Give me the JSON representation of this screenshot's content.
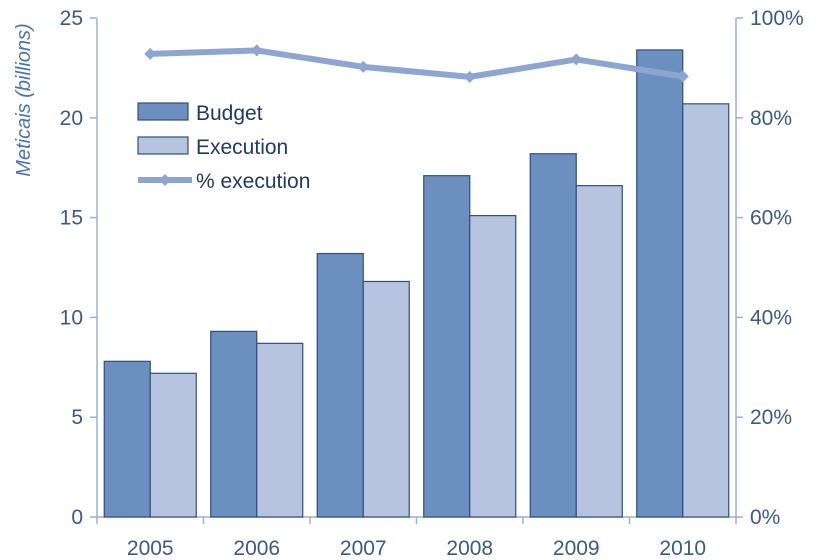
{
  "chart_data": {
    "type": "bar",
    "categories": [
      "2005",
      "2006",
      "2007",
      "2008",
      "2009",
      "2010"
    ],
    "series": [
      {
        "name": "Budget",
        "type": "bar",
        "axis": "left",
        "color": "#6b8fbe",
        "values": [
          7.8,
          9.3,
          13.2,
          17.1,
          18.2,
          23.4
        ]
      },
      {
        "name": "Execution",
        "type": "bar",
        "axis": "left",
        "color": "#b6c4e0",
        "values": [
          7.2,
          8.7,
          11.8,
          15.1,
          16.6,
          20.7
        ]
      },
      {
        "name": "% execution",
        "type": "line",
        "axis": "right",
        "color": "#8ea5d2",
        "values": [
          92.8,
          93.5,
          90.2,
          88.2,
          91.7,
          88.3
        ]
      }
    ],
    "ylabel": "Meticais (billions)",
    "ylim": [
      0,
      25
    ],
    "yticks": [
      "0",
      "5",
      "10",
      "15",
      "20",
      "25"
    ],
    "y2lim": [
      0,
      100
    ],
    "y2ticks": [
      "0%",
      "20%",
      "40%",
      "60%",
      "80%",
      "100%"
    ],
    "legend_placement": "upper-left",
    "grid": false
  }
}
